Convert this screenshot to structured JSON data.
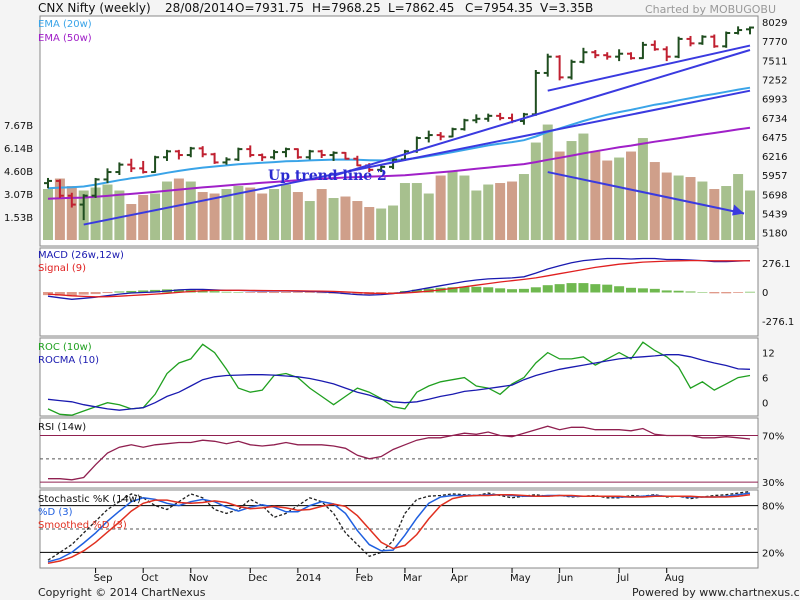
{
  "header": {
    "title": "CNX Nifty (weekly)",
    "date": "28/08/2014",
    "open": "O=7931.75",
    "high": "H=7968.25",
    "low": "L=7862.45",
    "close": "C=7954.35",
    "volume": "V=3.35B",
    "charted_by": "Charted by MOBUGOBU"
  },
  "footer": {
    "copyright": "Copyright © 2014 ChartNexus",
    "powered": "Powered by www.chartnexus.com"
  },
  "colors": {
    "up": "#1f4d1f",
    "down": "#c02030",
    "vol_up": "#a7c08e",
    "vol_down": "#cf9f8a",
    "ema20": "#3aa4e8",
    "ema50": "#a020c8",
    "trend": "#3a3ae0",
    "macd": "#1a1ab0",
    "signal": "#e02020",
    "roc": "#20a020",
    "rocma": "#1a1ab0",
    "rsi": "#902050",
    "stochK": "#222222",
    "stochD": "#2060e0",
    "stochSD": "#e03020",
    "pane_bg": "#ffffff"
  },
  "chart_data": [
    {
      "type": "candlestick",
      "title": "CNX Nifty (weekly)",
      "y_ticks": [
        "8029",
        "7770",
        "7511",
        "7252",
        "6993",
        "6734",
        "6475",
        "6216",
        "5957",
        "5698",
        "5439",
        "5180"
      ],
      "x_ticks": [
        "Sep",
        "Oct",
        "Nov",
        "Dec",
        "2014",
        "Feb",
        "Mar",
        "Apr",
        "May",
        "Jun",
        "Jul",
        "Aug"
      ],
      "ylim": [
        5000,
        8110
      ],
      "ohlc": [
        [
          5850,
          5920,
          5780,
          5880
        ],
        [
          5880,
          5900,
          5650,
          5680
        ],
        [
          5680,
          5720,
          5520,
          5560
        ],
        [
          5560,
          5700,
          5350,
          5680
        ],
        [
          5680,
          5920,
          5650,
          5900
        ],
        [
          5900,
          6050,
          5850,
          6000
        ],
        [
          6000,
          6130,
          5960,
          6100
        ],
        [
          6100,
          6180,
          6000,
          6050
        ],
        [
          6050,
          6150,
          5980,
          6000
        ],
        [
          6000,
          6220,
          5990,
          6200
        ],
        [
          6200,
          6300,
          6150,
          6280
        ],
        [
          6280,
          6300,
          6170,
          6230
        ],
        [
          6230,
          6340,
          6200,
          6320
        ],
        [
          6320,
          6350,
          6200,
          6240
        ],
        [
          6240,
          6260,
          6110,
          6130
        ],
        [
          6130,
          6200,
          6100,
          6170
        ],
        [
          6170,
          6330,
          6150,
          6310
        ],
        [
          6310,
          6360,
          6200,
          6230
        ],
        [
          6230,
          6250,
          6150,
          6200
        ],
        [
          6200,
          6300,
          6170,
          6270
        ],
        [
          6270,
          6330,
          6200,
          6310
        ],
        [
          6310,
          6320,
          6180,
          6200
        ],
        [
          6200,
          6300,
          6170,
          6280
        ],
        [
          6280,
          6300,
          6190,
          6230
        ],
        [
          6230,
          6280,
          6150,
          6260
        ],
        [
          6260,
          6270,
          6170,
          6180
        ],
        [
          6180,
          6220,
          6080,
          6090
        ],
        [
          6090,
          6120,
          6000,
          6030
        ],
        [
          6030,
          6100,
          6000,
          6070
        ],
        [
          6070,
          6190,
          6040,
          6170
        ],
        [
          6170,
          6300,
          6150,
          6280
        ],
        [
          6280,
          6480,
          6260,
          6460
        ],
        [
          6460,
          6560,
          6400,
          6500
        ],
        [
          6500,
          6540,
          6430,
          6480
        ],
        [
          6480,
          6600,
          6470,
          6580
        ],
        [
          6580,
          6720,
          6560,
          6700
        ],
        [
          6700,
          6780,
          6660,
          6720
        ],
        [
          6720,
          6790,
          6680,
          6760
        ],
        [
          6760,
          6800,
          6700,
          6730
        ],
        [
          6730,
          6790,
          6660,
          6690
        ],
        [
          6690,
          6800,
          6640,
          6780
        ],
        [
          6780,
          7380,
          6760,
          7340
        ],
        [
          7340,
          7600,
          7290,
          7560
        ],
        [
          7560,
          7580,
          7240,
          7280
        ],
        [
          7280,
          7520,
          7250,
          7490
        ],
        [
          7490,
          7680,
          7470,
          7620
        ],
        [
          7620,
          7650,
          7540,
          7580
        ],
        [
          7580,
          7620,
          7520,
          7560
        ],
        [
          7560,
          7660,
          7500,
          7600
        ],
        [
          7600,
          7620,
          7520,
          7540
        ],
        [
          7540,
          7760,
          7530,
          7720
        ],
        [
          7720,
          7780,
          7640,
          7660
        ],
        [
          7660,
          7700,
          7500,
          7560
        ],
        [
          7560,
          7830,
          7540,
          7800
        ],
        [
          7800,
          7840,
          7700,
          7740
        ],
        [
          7740,
          7850,
          7720,
          7830
        ],
        [
          7830,
          7860,
          7680,
          7700
        ],
        [
          7700,
          7900,
          7680,
          7880
        ],
        [
          7880,
          7970,
          7860,
          7920
        ],
        [
          7930,
          7968,
          7862,
          7954
        ]
      ],
      "ema20": [
        5780,
        5790,
        5795,
        5805,
        5830,
        5860,
        5890,
        5915,
        5935,
        5960,
        5990,
        6015,
        6040,
        6060,
        6075,
        6090,
        6105,
        6115,
        6125,
        6135,
        6145,
        6150,
        6158,
        6163,
        6168,
        6170,
        6165,
        6160,
        6158,
        6160,
        6170,
        6190,
        6215,
        6240,
        6270,
        6300,
        6330,
        6360,
        6385,
        6405,
        6430,
        6480,
        6540,
        6590,
        6640,
        6690,
        6735,
        6775,
        6810,
        6840,
        6875,
        6910,
        6935,
        6970,
        7000,
        7030,
        7055,
        7085,
        7115,
        7140
      ],
      "ema50": [
        5640,
        5645,
        5650,
        5655,
        5665,
        5678,
        5692,
        5705,
        5718,
        5732,
        5748,
        5762,
        5777,
        5792,
        5805,
        5818,
        5831,
        5843,
        5855,
        5866,
        5878,
        5888,
        5899,
        5908,
        5918,
        5926,
        5932,
        5938,
        5944,
        5950,
        5958,
        5970,
        5983,
        5997,
        6012,
        6028,
        6044,
        6060,
        6076,
        6091,
        6107,
        6135,
        6165,
        6193,
        6222,
        6252,
        6280,
        6308,
        6334,
        6358,
        6384,
        6410,
        6433,
        6458,
        6482,
        6506,
        6528,
        6552,
        6576,
        6598
      ],
      "volume_ticks": [
        "7.67B",
        "6.14B",
        "4.60B",
        "3.07B",
        "1.53B"
      ],
      "volume": [
        3.4,
        4.1,
        3.6,
        3.3,
        3.5,
        3.7,
        3.3,
        2.4,
        3.0,
        3.1,
        3.9,
        4.1,
        3.9,
        3.2,
        3.1,
        3.4,
        3.6,
        3.5,
        3.1,
        3.4,
        3.7,
        3.2,
        2.6,
        3.4,
        2.8,
        2.9,
        2.6,
        2.2,
        2.1,
        2.3,
        3.8,
        3.8,
        3.1,
        4.3,
        4.6,
        4.3,
        3.3,
        3.7,
        3.8,
        3.9,
        4.4,
        6.5,
        7.7,
        5.9,
        6.6,
        7.1,
        5.9,
        5.3,
        5.5,
        5.9,
        6.8,
        5.2,
        4.5,
        4.3,
        4.2,
        3.9,
        3.4,
        3.6,
        4.4,
        3.3
      ]
    },
    {
      "type": "line",
      "title": "MACD",
      "series_labels": [
        "MACD (26w,12w)",
        "Signal (9)"
      ],
      "y_ticks": [
        "276.1",
        "0",
        "-276.1"
      ],
      "ylim": [
        -420,
        420
      ],
      "macd": [
        -40,
        -55,
        -70,
        -60,
        -50,
        -35,
        -20,
        -10,
        -5,
        0,
        10,
        20,
        25,
        25,
        20,
        15,
        15,
        12,
        10,
        10,
        10,
        8,
        6,
        2,
        -5,
        -15,
        -25,
        -30,
        -25,
        -15,
        0,
        20,
        40,
        60,
        80,
        100,
        115,
        125,
        130,
        135,
        145,
        180,
        220,
        250,
        280,
        300,
        310,
        320,
        320,
        315,
        320,
        320,
        310,
        310,
        305,
        300,
        290,
        290,
        295,
        300
      ],
      "signal": [
        -20,
        -28,
        -36,
        -42,
        -46,
        -45,
        -40,
        -33,
        -27,
        -20,
        -12,
        -4,
        5,
        12,
        15,
        16,
        16,
        15,
        14,
        13,
        12,
        11,
        10,
        9,
        6,
        1,
        -5,
        -11,
        -14,
        -14,
        -10,
        -2,
        8,
        20,
        34,
        50,
        65,
        80,
        95,
        108,
        120,
        135,
        155,
        175,
        195,
        215,
        235,
        250,
        265,
        275,
        285,
        290,
        295,
        298,
        300,
        300,
        298,
        298,
        298,
        298
      ],
      "histogram": [
        -25,
        -30,
        -35,
        -20,
        -15,
        -5,
        5,
        10,
        15,
        20,
        25,
        25,
        20,
        15,
        8,
        2,
        0,
        -3,
        -5,
        -5,
        -4,
        -3,
        -4,
        -7,
        -11,
        -16,
        -20,
        -19,
        -13,
        -3,
        10,
        22,
        32,
        40,
        46,
        50,
        50,
        45,
        35,
        27,
        30,
        45,
        65,
        75,
        85,
        85,
        75,
        70,
        55,
        40,
        35,
        30,
        15,
        12,
        5,
        0,
        -8,
        -8,
        -3,
        2
      ]
    },
    {
      "type": "line",
      "title": "ROC",
      "series_labels": [
        "ROC (10w)",
        "ROCMA (10)"
      ],
      "y_ticks": [
        "12",
        "6",
        "0"
      ],
      "ylim": [
        -3.2,
        15.5
      ],
      "roc": [
        -1.5,
        -2.8,
        -3.0,
        -2.0,
        -1.0,
        0,
        -0.5,
        -1.5,
        -1.2,
        2.0,
        7.0,
        9.5,
        10.5,
        14.0,
        12.0,
        8.0,
        3.5,
        2.5,
        3.0,
        6.5,
        7.0,
        6.0,
        3.5,
        1.5,
        -0.5,
        1.5,
        3.5,
        2.5,
        1.0,
        -1.0,
        -1.5,
        2.5,
        4.0,
        5.0,
        5.5,
        6.0,
        4.0,
        3.5,
        2.0,
        4.5,
        6.0,
        9.5,
        12.0,
        10.5,
        10.5,
        11.0,
        9.0,
        10.5,
        12.0,
        10.5,
        14.5,
        12.5,
        11.0,
        8.5,
        3.5,
        5.0,
        3.0,
        4.5,
        6.0,
        6.5
      ],
      "rocma": [
        0.8,
        0.5,
        0.2,
        -0.5,
        -1.0,
        -1.5,
        -1.8,
        -1.5,
        -1.2,
        0,
        1.5,
        2.5,
        4.0,
        5.5,
        6.2,
        6.5,
        6.6,
        6.7,
        6.7,
        6.6,
        6.4,
        6.2,
        5.8,
        5.2,
        4.5,
        3.5,
        2.5,
        1.8,
        0.8,
        0.2,
        0,
        0.2,
        0.8,
        1.5,
        2.0,
        2.7,
        3.0,
        3.4,
        3.8,
        4.2,
        5.5,
        6.5,
        7.3,
        8.0,
        8.5,
        9.0,
        9.5,
        10.0,
        10.5,
        10.8,
        11.0,
        11.2,
        11.5,
        11.5,
        11.0,
        10.2,
        9.5,
        8.9,
        8.1,
        8.0
      ]
    },
    {
      "type": "line",
      "title": "RSI",
      "series_labels": [
        "RSI (14w)"
      ],
      "y_ticks": [
        "70%",
        "30%"
      ],
      "ylim": [
        25,
        85
      ],
      "rsi": [
        33,
        33,
        32,
        34,
        45,
        55,
        60,
        62,
        60,
        62,
        63,
        64,
        64,
        66,
        65,
        63,
        65,
        62,
        61,
        62,
        64,
        62,
        62,
        62,
        61,
        59,
        53,
        50,
        52,
        58,
        62,
        66,
        68,
        68,
        70,
        72,
        71,
        73,
        70,
        69,
        72,
        75,
        78,
        75,
        77,
        77,
        75,
        75,
        75,
        74,
        76,
        71,
        70,
        70,
        70,
        68,
        68,
        69,
        68,
        67
      ]
    },
    {
      "type": "line",
      "title": "Stochastic",
      "series_labels": [
        "Stochastic %K (14w)",
        "%D (3)",
        "Smoothed %D (3)"
      ],
      "y_ticks": [
        "80%",
        "20%"
      ],
      "ylim": [
        0,
        100
      ],
      "stochK": [
        10,
        20,
        30,
        45,
        60,
        75,
        85,
        95,
        90,
        80,
        75,
        85,
        95,
        90,
        75,
        70,
        75,
        88,
        80,
        65,
        70,
        80,
        90,
        85,
        70,
        45,
        30,
        15,
        20,
        35,
        70,
        88,
        92,
        93,
        95,
        94,
        93,
        96,
        93,
        90,
        92,
        94,
        92,
        93,
        91,
        92,
        93,
        90,
        90,
        93,
        92,
        94,
        91,
        92,
        89,
        91,
        93,
        94,
        96,
        98
      ],
      "stochD": [
        8,
        12,
        20,
        32,
        45,
        60,
        73,
        85,
        90,
        88,
        83,
        80,
        85,
        88,
        85,
        78,
        73,
        78,
        81,
        78,
        72,
        72,
        80,
        85,
        82,
        70,
        48,
        30,
        22,
        23,
        42,
        64,
        83,
        91,
        93,
        93,
        93,
        94,
        94,
        93,
        92,
        92,
        93,
        93,
        92,
        92,
        92,
        92,
        91,
        91,
        92,
        93,
        92,
        92,
        91,
        91,
        91,
        92,
        94,
        96
      ],
      "stochSD": [
        6,
        9,
        14,
        22,
        33,
        46,
        59,
        73,
        83,
        87,
        87,
        84,
        83,
        84,
        86,
        84,
        79,
        76,
        77,
        79,
        77,
        74,
        75,
        79,
        82,
        79,
        67,
        50,
        33,
        25,
        29,
        43,
        63,
        80,
        89,
        92,
        93,
        93,
        94,
        94,
        93,
        92,
        92,
        93,
        93,
        92,
        92,
        92,
        92,
        91,
        91,
        92,
        92,
        92,
        92,
        91,
        91,
        91,
        92,
        94
      ]
    }
  ],
  "annotations": {
    "uptrend_label": "Up trend line 2"
  }
}
